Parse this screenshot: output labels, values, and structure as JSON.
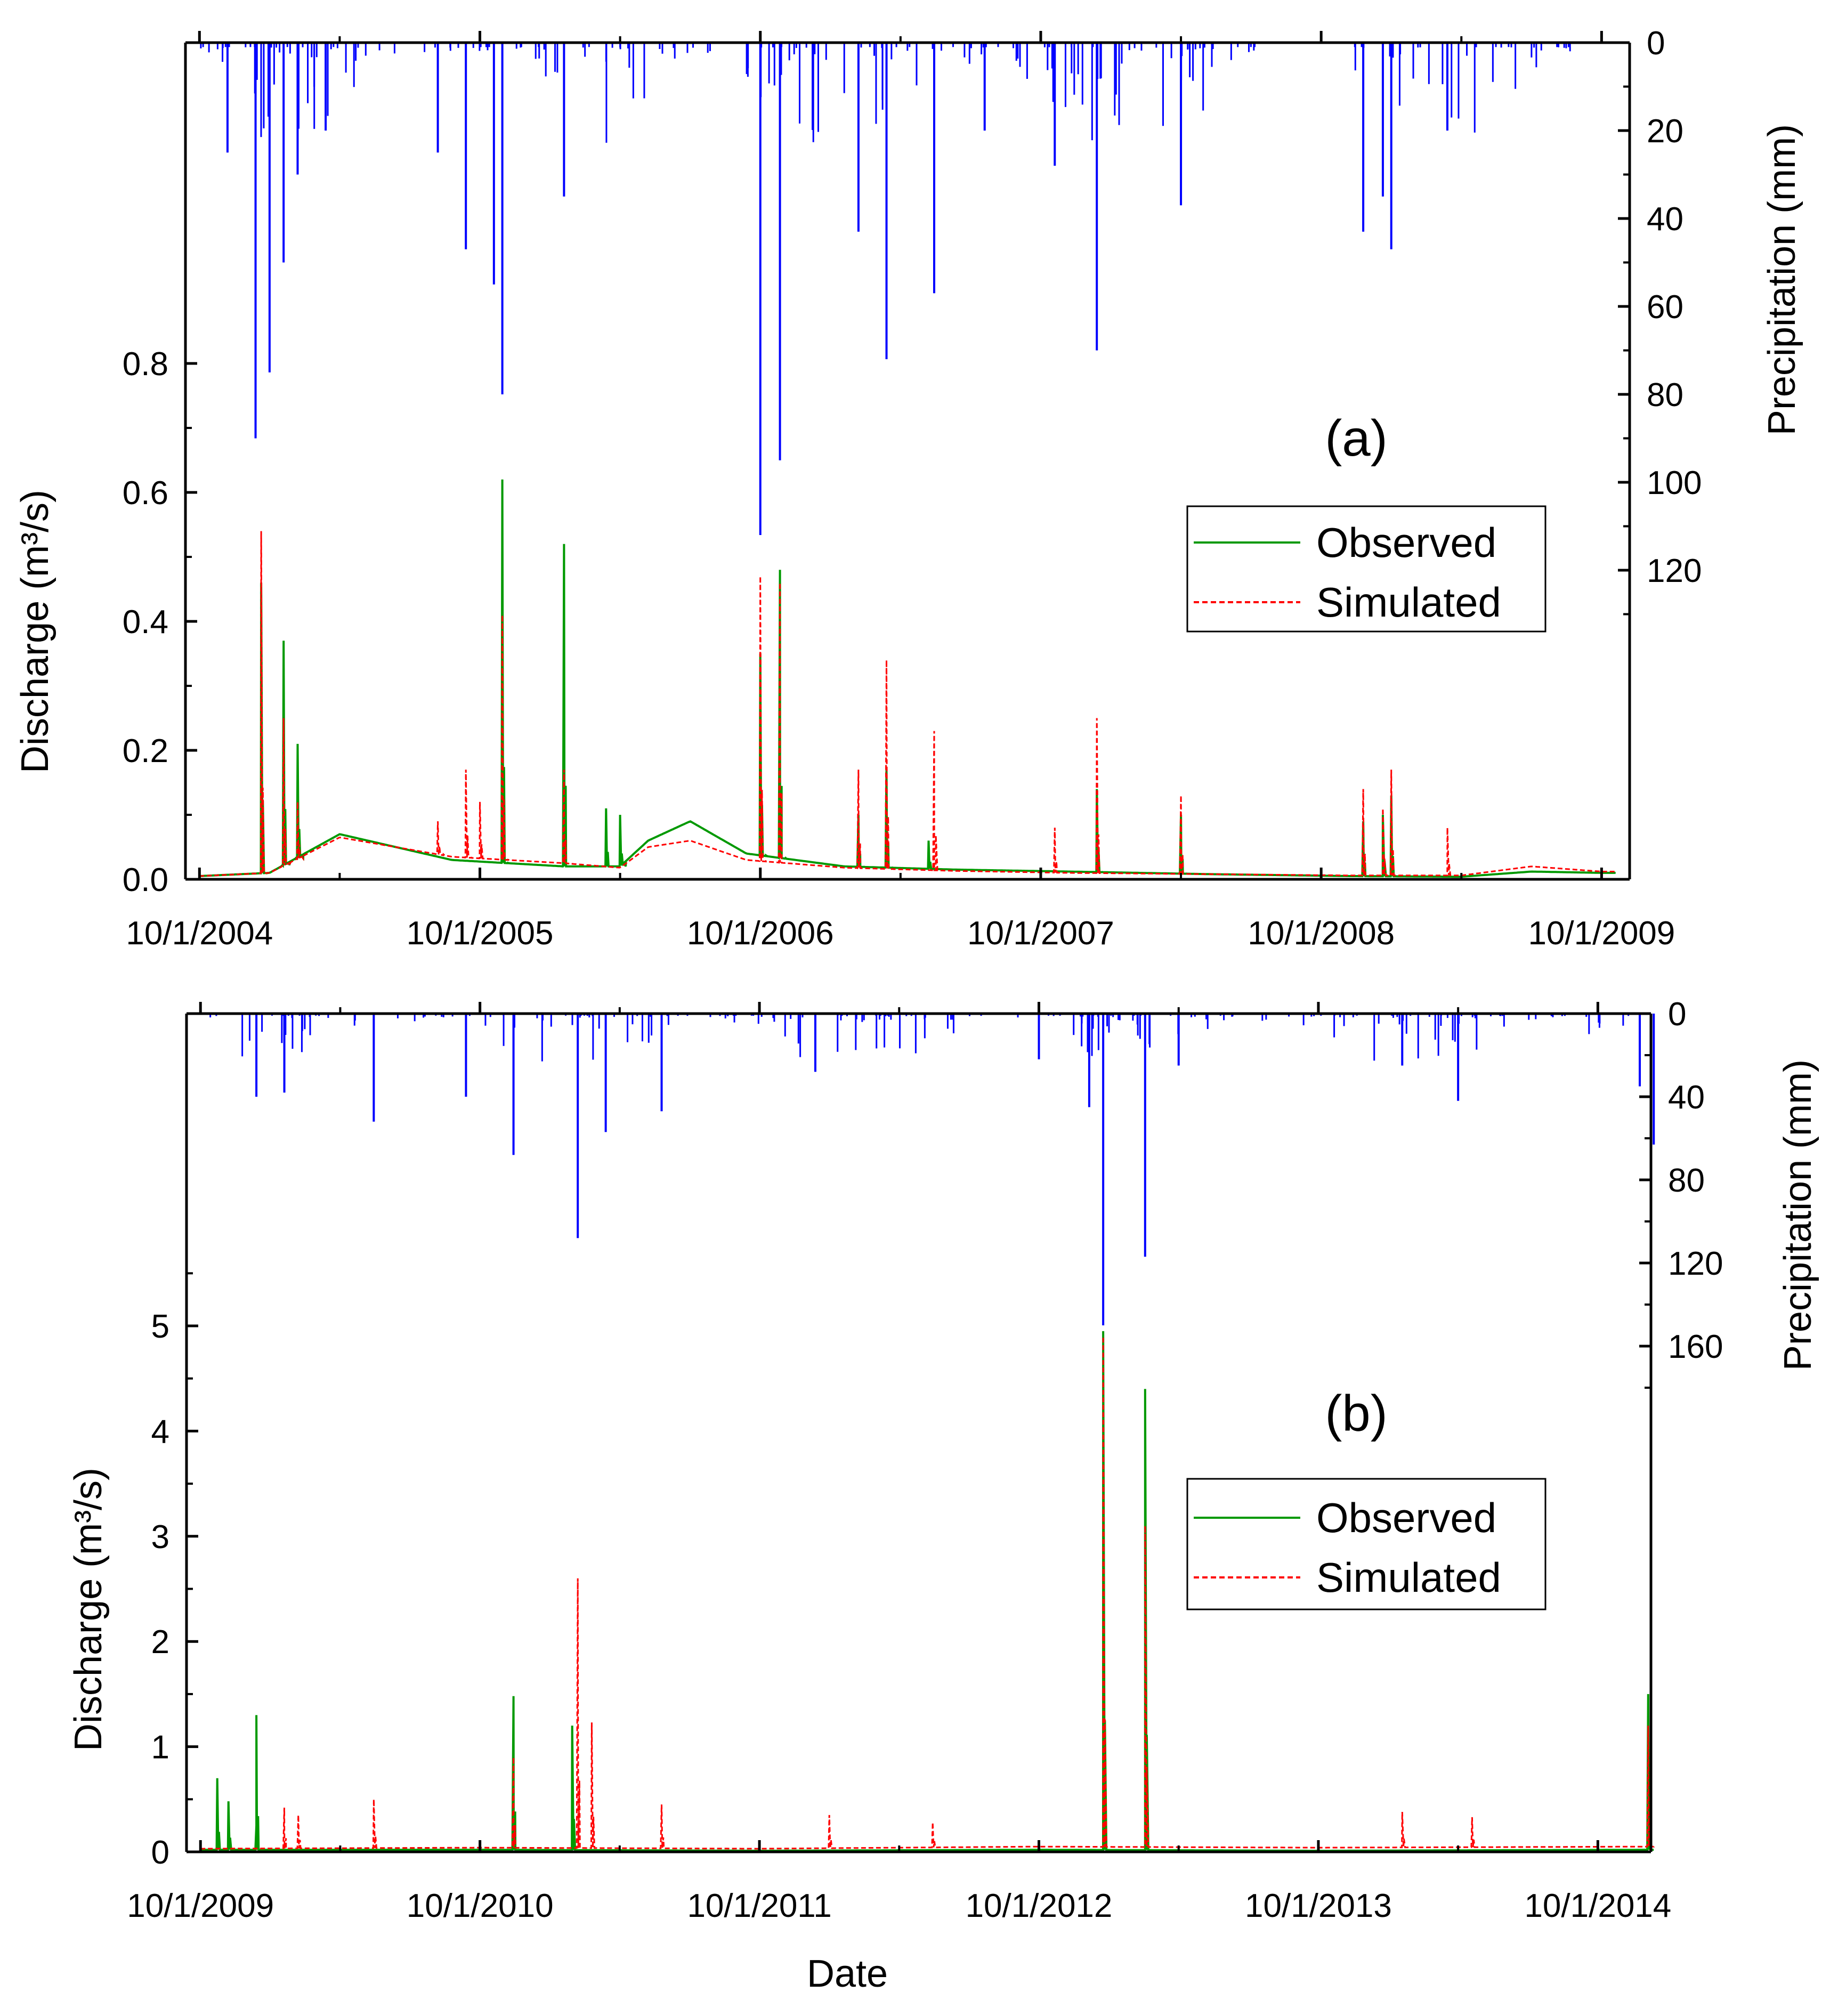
{
  "figure": {
    "x_axis_title": "Date",
    "colors": {
      "precipitation": "#0000ff",
      "observed": "#009900",
      "simulated": "#ff0000",
      "axis": "#000000"
    }
  },
  "chart_data": [
    {
      "type": "line",
      "panel_label": "(a)",
      "title": "",
      "xlabel": "",
      "ylabel_left": "Discharge (m³/s)",
      "ylabel_right": "Precipitation (mm)",
      "x_ticks": [
        "10/1/2004",
        "10/1/2005",
        "10/1/2006",
        "10/1/2007",
        "10/1/2008",
        "10/1/2009"
      ],
      "x_start_year": 2004.7,
      "x_end_year": 2009.85,
      "left_ylim": [
        0,
        1.3
      ],
      "left_yticks": [
        "0.0",
        "0.2",
        "0.4",
        "0.6",
        "0.8"
      ],
      "left_ytick_values": [
        0,
        0.2,
        0.4,
        0.6,
        0.8
      ],
      "left_label_max": 0.8,
      "right_ylim": [
        0,
        190
      ],
      "right_yticks": [
        "0",
        "20",
        "40",
        "60",
        "80",
        "100",
        "120"
      ],
      "right_ytick_values": [
        0,
        20,
        40,
        60,
        80,
        100,
        120
      ],
      "legend": {
        "entries": [
          "Observed",
          "Simulated"
        ],
        "position": "upper-right"
      },
      "data_end_year": 9.75,
      "observed": {
        "base": [
          [
            0.0,
            0.005
          ],
          [
            0.25,
            0.01
          ],
          [
            0.5,
            0.07
          ],
          [
            0.9,
            0.03
          ],
          [
            1.3,
            0.02
          ],
          [
            1.5,
            0.02
          ],
          [
            1.6,
            0.06
          ],
          [
            1.75,
            0.09
          ],
          [
            1.95,
            0.04
          ],
          [
            2.3,
            0.02
          ],
          [
            2.7,
            0.015
          ],
          [
            3.1,
            0.012
          ],
          [
            3.6,
            0.008
          ],
          [
            4.1,
            0.005
          ],
          [
            4.5,
            0.004
          ],
          [
            4.75,
            0.012
          ],
          [
            5.0,
            0.01
          ]
        ],
        "peaks": [
          [
            0.22,
            0.46
          ],
          [
            0.3,
            0.37
          ],
          [
            0.35,
            0.21
          ],
          [
            1.08,
            0.62
          ],
          [
            1.3,
            0.52
          ],
          [
            1.45,
            0.11
          ],
          [
            1.5,
            0.1
          ],
          [
            2.0,
            0.35
          ],
          [
            2.07,
            0.48
          ],
          [
            2.35,
            0.1
          ],
          [
            2.45,
            0.17
          ],
          [
            2.6,
            0.06
          ],
          [
            3.2,
            0.14
          ],
          [
            3.5,
            0.1
          ],
          [
            4.15,
            0.09
          ],
          [
            4.22,
            0.1
          ],
          [
            4.25,
            0.13
          ]
        ]
      },
      "simulated": {
        "base": [
          [
            0.0,
            0.005
          ],
          [
            0.25,
            0.01
          ],
          [
            0.5,
            0.065
          ],
          [
            0.9,
            0.035
          ],
          [
            1.3,
            0.025
          ],
          [
            1.5,
            0.018
          ],
          [
            1.6,
            0.05
          ],
          [
            1.75,
            0.06
          ],
          [
            1.95,
            0.03
          ],
          [
            2.3,
            0.018
          ],
          [
            2.7,
            0.013
          ],
          [
            3.1,
            0.01
          ],
          [
            3.6,
            0.008
          ],
          [
            4.1,
            0.006
          ],
          [
            4.5,
            0.006
          ],
          [
            4.75,
            0.02
          ],
          [
            5.0,
            0.012
          ]
        ],
        "peaks": [
          [
            0.22,
            0.54
          ],
          [
            0.3,
            0.25
          ],
          [
            0.35,
            0.12
          ],
          [
            0.85,
            0.09
          ],
          [
            0.95,
            0.17
          ],
          [
            1.0,
            0.12
          ],
          [
            1.08,
            0.41
          ],
          [
            1.3,
            0.17
          ],
          [
            2.0,
            0.47
          ],
          [
            2.07,
            0.46
          ],
          [
            2.35,
            0.17
          ],
          [
            2.45,
            0.34
          ],
          [
            2.62,
            0.23
          ],
          [
            3.05,
            0.08
          ],
          [
            3.2,
            0.25
          ],
          [
            3.5,
            0.13
          ],
          [
            4.15,
            0.14
          ],
          [
            4.22,
            0.11
          ],
          [
            4.25,
            0.17
          ],
          [
            4.45,
            0.08
          ]
        ]
      },
      "precip_spikes": [
        [
          0.1,
          25
        ],
        [
          0.2,
          90
        ],
        [
          0.25,
          75
        ],
        [
          0.3,
          50
        ],
        [
          0.35,
          30
        ],
        [
          0.45,
          20
        ],
        [
          0.85,
          25
        ],
        [
          0.95,
          47
        ],
        [
          1.05,
          55
        ],
        [
          1.08,
          80
        ],
        [
          1.3,
          35
        ],
        [
          2.0,
          112
        ],
        [
          2.07,
          95
        ],
        [
          2.35,
          43
        ],
        [
          2.45,
          72
        ],
        [
          2.62,
          57
        ],
        [
          2.8,
          20
        ],
        [
          3.05,
          28
        ],
        [
          3.2,
          70
        ],
        [
          3.5,
          37
        ],
        [
          4.15,
          43
        ],
        [
          4.22,
          35
        ],
        [
          4.25,
          47
        ],
        [
          4.45,
          20
        ]
      ]
    },
    {
      "type": "line",
      "panel_label": "(b)",
      "title": "",
      "xlabel": "Date",
      "ylabel_left": "Discharge (m³/s)",
      "ylabel_right": "Precipitation (mm)",
      "x_ticks": [
        "10/1/2009",
        "10/1/2010",
        "10/1/2011",
        "10/1/2012",
        "10/1/2013",
        "10/1/2014"
      ],
      "x_start_year": 2009.7,
      "x_end_year": 2014.94,
      "left_ylim": [
        0,
        8.0
      ],
      "left_yticks": [
        "0",
        "1",
        "2",
        "3",
        "4",
        "5"
      ],
      "left_ytick_values": [
        0,
        1,
        2,
        3,
        4,
        5
      ],
      "left_label_max": 5,
      "right_ylim": [
        0,
        400
      ],
      "right_yticks": [
        "0",
        "40",
        "80",
        "120",
        "160"
      ],
      "right_ytick_values": [
        0,
        40,
        80,
        120,
        160
      ],
      "legend": {
        "entries": [
          "Observed",
          "Simulated"
        ],
        "position": "upper-right"
      },
      "observed": {
        "base": [
          [
            0.0,
            0.02
          ],
          [
            1.0,
            0.02
          ],
          [
            2.0,
            0.01
          ],
          [
            3.0,
            0.02
          ],
          [
            4.0,
            0.01
          ],
          [
            5.2,
            0.02
          ]
        ],
        "peaks": [
          [
            0.06,
            0.7
          ],
          [
            0.1,
            0.48
          ],
          [
            0.2,
            0.25
          ],
          [
            0.2,
            1.3
          ],
          [
            1.12,
            1.48
          ],
          [
            1.33,
            1.2
          ],
          [
            3.23,
            4.95
          ],
          [
            3.38,
            4.4
          ],
          [
            5.18,
            1.5
          ]
        ]
      },
      "simulated": {
        "base": [
          [
            0.0,
            0.03
          ],
          [
            1.0,
            0.04
          ],
          [
            2.0,
            0.03
          ],
          [
            3.0,
            0.05
          ],
          [
            4.0,
            0.04
          ],
          [
            5.2,
            0.05
          ]
        ],
        "peaks": [
          [
            0.3,
            0.42
          ],
          [
            0.35,
            0.35
          ],
          [
            0.62,
            0.5
          ],
          [
            1.12,
            0.9
          ],
          [
            1.35,
            2.6
          ],
          [
            1.4,
            1.23
          ],
          [
            1.65,
            0.45
          ],
          [
            2.25,
            0.35
          ],
          [
            2.62,
            0.28
          ],
          [
            3.23,
            4.9
          ],
          [
            3.38,
            3.1
          ],
          [
            4.3,
            0.38
          ],
          [
            4.55,
            0.33
          ],
          [
            5.18,
            1.2
          ]
        ]
      },
      "precip_spikes": [
        [
          0.2,
          40
        ],
        [
          0.3,
          38
        ],
        [
          0.62,
          52
        ],
        [
          0.95,
          40
        ],
        [
          1.12,
          68
        ],
        [
          1.35,
          108
        ],
        [
          1.45,
          57
        ],
        [
          1.65,
          47
        ],
        [
          2.2,
          28
        ],
        [
          3.0,
          22
        ],
        [
          3.18,
          45
        ],
        [
          3.23,
          150
        ],
        [
          3.38,
          117
        ],
        [
          3.5,
          25
        ],
        [
          4.3,
          25
        ],
        [
          4.5,
          42
        ],
        [
          5.15,
          35
        ],
        [
          5.2,
          63
        ]
      ]
    }
  ]
}
